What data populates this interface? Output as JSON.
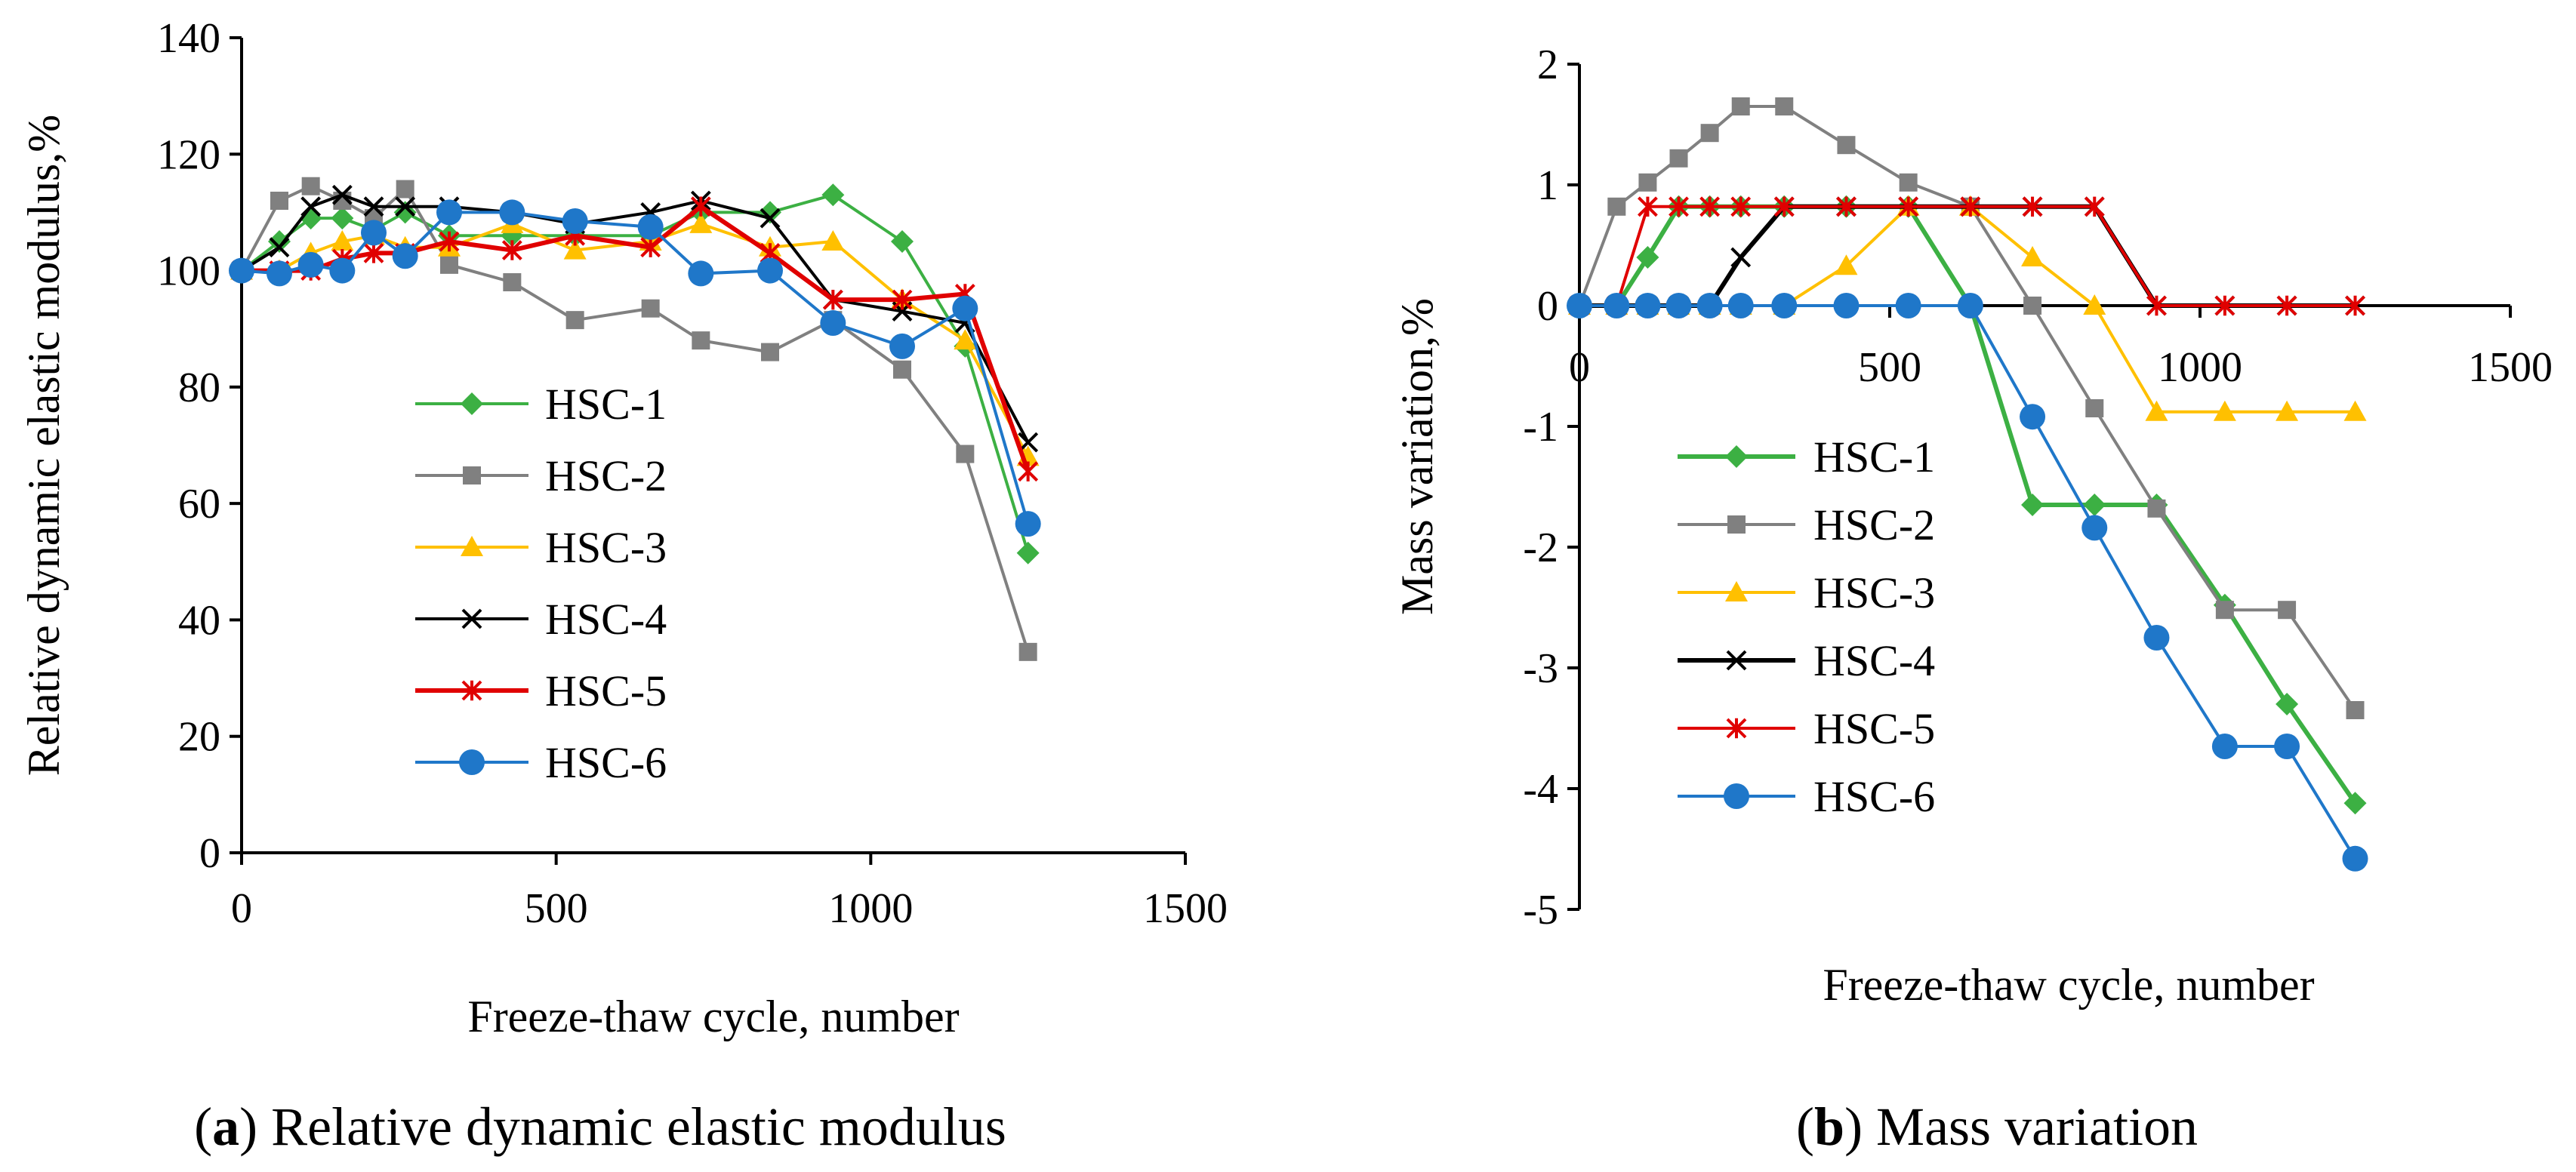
{
  "chart_data": [
    {
      "type": "line",
      "panel": "a",
      "caption": {
        "letter": "a",
        "text": " Relative dynamic elastic modulus"
      },
      "xlabel": "Freeze-thaw cycle, number",
      "ylabel": "Relative dynamic elastic modulus,%",
      "xlim": [
        0,
        1500
      ],
      "ylim": [
        0,
        140
      ],
      "xticks": [
        "0",
        "500",
        "1000",
        "1500"
      ],
      "yticks": [
        "0",
        "20",
        "40",
        "60",
        "80",
        "100",
        "120",
        "140"
      ],
      "legend_position": "center-left",
      "series": [
        {
          "name": "HSC-1",
          "color": "#3CB043",
          "marker": "diamond",
          "x": [
            0,
            60,
            110,
            160,
            210,
            260,
            330,
            430,
            530,
            650,
            730,
            840,
            940,
            1050,
            1150,
            1250
          ],
          "y": [
            100,
            105,
            109,
            109,
            107,
            110,
            106,
            106,
            106,
            106,
            110,
            110,
            113,
            105,
            87,
            51.5
          ]
        },
        {
          "name": "HSC-2",
          "color": "#808080",
          "marker": "square",
          "x": [
            0,
            60,
            110,
            160,
            210,
            260,
            330,
            430,
            530,
            650,
            730,
            840,
            940,
            1050,
            1150,
            1250
          ],
          "y": [
            100,
            112,
            114.5,
            112,
            109,
            114,
            101,
            98,
            91.5,
            93.5,
            88,
            86,
            91.5,
            83,
            68.5,
            34.5
          ]
        },
        {
          "name": "HSC-3",
          "color": "#FFC000",
          "marker": "triangle",
          "x": [
            0,
            60,
            110,
            160,
            210,
            260,
            330,
            430,
            530,
            650,
            730,
            840,
            940,
            1050,
            1150,
            1250
          ],
          "y": [
            100,
            100,
            103,
            105,
            106,
            104,
            104,
            108,
            103.5,
            105,
            108,
            104,
            105,
            95,
            88,
            68
          ]
        },
        {
          "name": "HSC-4",
          "color": "#000000",
          "marker": "x",
          "x": [
            0,
            60,
            110,
            160,
            210,
            260,
            330,
            430,
            530,
            650,
            730,
            840,
            940,
            1050,
            1150,
            1250
          ],
          "y": [
            100,
            104,
            111,
            113,
            111,
            111,
            111,
            110,
            108,
            110,
            112,
            109,
            95,
            93,
            91,
            70.5
          ]
        },
        {
          "name": "HSC-5",
          "color": "#E00000",
          "marker": "star",
          "x": [
            0,
            60,
            110,
            160,
            210,
            260,
            330,
            430,
            530,
            650,
            730,
            840,
            940,
            1050,
            1150,
            1250
          ],
          "y": [
            100,
            100,
            100,
            102,
            103,
            103,
            105,
            103.5,
            106,
            104,
            111,
            103,
            95,
            95,
            96,
            65.5
          ]
        },
        {
          "name": "HSC-6",
          "color": "#1F77C9",
          "marker": "circle",
          "x": [
            0,
            60,
            110,
            160,
            210,
            260,
            330,
            430,
            530,
            650,
            730,
            840,
            940,
            1050,
            1150,
            1250
          ],
          "y": [
            100,
            99.5,
            101,
            100,
            106.5,
            102.5,
            110,
            110,
            108.5,
            107.5,
            99.5,
            100,
            91,
            87,
            93.5,
            56.5
          ]
        }
      ]
    },
    {
      "type": "line",
      "panel": "b",
      "caption": {
        "letter": "b",
        "text": " Mass variation"
      },
      "xlabel": "Freeze-thaw cycle, number",
      "ylabel": "Mass variation,%",
      "xlim": [
        0,
        1500
      ],
      "ylim": [
        -5,
        2
      ],
      "xticks": [
        "0",
        "500",
        "1000",
        "1500"
      ],
      "yticks": [
        "-5",
        "-4",
        "-3",
        "-2",
        "-1",
        "0",
        "1",
        "2"
      ],
      "legend_position": "bottom-left",
      "series": [
        {
          "name": "HSC-1",
          "color": "#3CB043",
          "marker": "diamond",
          "x": [
            0,
            60,
            110,
            160,
            210,
            260,
            330,
            430,
            530,
            630,
            730,
            830,
            930,
            1040,
            1140,
            1250
          ],
          "y": [
            0,
            0,
            0.4,
            0.82,
            0.82,
            0.82,
            0.82,
            0.82,
            0.82,
            0,
            -1.65,
            -1.65,
            -1.65,
            -2.48,
            -3.3,
            -4.12
          ]
        },
        {
          "name": "HSC-2",
          "color": "#808080",
          "marker": "square",
          "x": [
            0,
            60,
            110,
            160,
            210,
            260,
            330,
            430,
            530,
            630,
            730,
            830,
            930,
            1040,
            1140,
            1250
          ],
          "y": [
            0,
            0.82,
            1.02,
            1.22,
            1.43,
            1.65,
            1.65,
            1.33,
            1.02,
            0.82,
            0,
            -0.85,
            -1.68,
            -2.52,
            -2.52,
            -3.35
          ]
        },
        {
          "name": "HSC-3",
          "color": "#FFC000",
          "marker": "triangle",
          "x": [
            0,
            60,
            110,
            160,
            210,
            260,
            330,
            430,
            530,
            630,
            730,
            830,
            930,
            1040,
            1140,
            1250
          ],
          "y": [
            0,
            0,
            0,
            0,
            0,
            0,
            0,
            0.33,
            0.82,
            0.82,
            0.4,
            0,
            -0.88,
            -0.88,
            -0.88,
            -0.88
          ]
        },
        {
          "name": "HSC-4",
          "color": "#000000",
          "marker": "x",
          "x": [
            0,
            60,
            110,
            160,
            210,
            260,
            330,
            430,
            530,
            630,
            730,
            830,
            930,
            1040,
            1140,
            1250
          ],
          "y": [
            0,
            0,
            0,
            0,
            0,
            0.4,
            0.82,
            0.82,
            0.82,
            0.82,
            0.82,
            0.82,
            0,
            0,
            0,
            0
          ]
        },
        {
          "name": "HSC-5",
          "color": "#E00000",
          "marker": "star",
          "x": [
            0,
            60,
            110,
            160,
            210,
            260,
            330,
            430,
            530,
            630,
            730,
            830,
            930,
            1040,
            1140,
            1250
          ],
          "y": [
            0,
            0,
            0.82,
            0.82,
            0.82,
            0.82,
            0.82,
            0.82,
            0.82,
            0.82,
            0.82,
            0.82,
            0,
            0,
            0,
            0
          ]
        },
        {
          "name": "HSC-6",
          "color": "#1F77C9",
          "marker": "circle",
          "x": [
            0,
            60,
            110,
            160,
            210,
            260,
            330,
            430,
            530,
            630,
            730,
            830,
            930,
            1040,
            1140,
            1250
          ],
          "y": [
            0,
            0,
            0,
            0,
            0,
            0,
            0,
            0,
            0,
            0,
            -0.92,
            -1.84,
            -2.75,
            -3.65,
            -3.65,
            -4.58
          ]
        }
      ]
    }
  ]
}
